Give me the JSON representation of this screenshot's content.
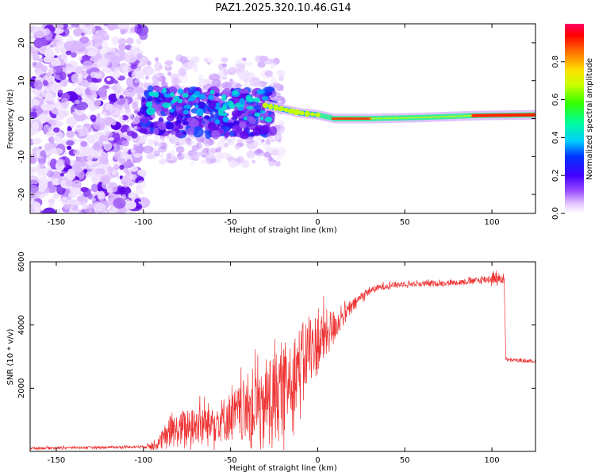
{
  "title": "PAZ1.2025.320.10.46.G14",
  "colors": {
    "snr_line": "#ee3333",
    "grid_tick": "#000000",
    "background": "#ffffff"
  },
  "chart_data": [
    {
      "type": "heatmap",
      "xlabel": "Height of straight line (km)",
      "ylabel": "Frequency (Hz)",
      "xlim": [
        -165,
        125
      ],
      "ylim": [
        -25,
        25
      ],
      "x_ticks": [
        "-150",
        "-100",
        "-50",
        "0",
        "50",
        "100"
      ],
      "x_tick_values": [
        -150,
        -100,
        -50,
        0,
        50,
        100
      ],
      "y_ticks": [
        "-20",
        "-10",
        "0",
        "10",
        "20"
      ],
      "y_tick_values": [
        -20,
        -10,
        0,
        10,
        20
      ],
      "colorbar": {
        "label": "Normalized spectral amplitude",
        "range": [
          0,
          1
        ],
        "ticks": [
          "0.0",
          "0.2",
          "0.4",
          "0.6",
          "0.8"
        ],
        "tick_values": [
          0,
          0.2,
          0.4,
          0.6,
          0.8
        ]
      },
      "ridge": {
        "description_points": [
          {
            "x": -100,
            "f": 4
          },
          {
            "x": -70,
            "f": 3
          },
          {
            "x": -40,
            "f": 3
          },
          {
            "x": -30,
            "f": 3.5
          },
          {
            "x": -20,
            "f": 2.5
          },
          {
            "x": -10,
            "f": 1.5
          },
          {
            "x": 0,
            "f": 1
          },
          {
            "x": 10,
            "f": 0
          },
          {
            "x": 30,
            "f": 0
          },
          {
            "x": 60,
            "f": 0.3
          },
          {
            "x": 90,
            "f": 0.8
          },
          {
            "x": 125,
            "f": 1
          }
        ]
      }
    },
    {
      "type": "line",
      "xlabel": "Height of straight line (km)",
      "ylabel": "SNR (10 * v/v)",
      "xlim": [
        -165,
        125
      ],
      "ylim": [
        0,
        6000
      ],
      "x_ticks": [
        "-150",
        "-100",
        "-50",
        "0",
        "50",
        "100"
      ],
      "x_tick_values": [
        -150,
        -100,
        -50,
        0,
        50,
        100
      ],
      "y_ticks": [
        "2000",
        "4000",
        "6000"
      ],
      "y_tick_values": [
        2000,
        4000,
        6000
      ],
      "series": [
        {
          "name": "SNR",
          "x": [
            -165,
            -140,
            -120,
            -100,
            -92,
            -85,
            -70,
            -55,
            -45,
            -35,
            -25,
            -20,
            -15,
            -10,
            -5,
            0,
            5,
            10,
            15,
            20,
            25,
            30,
            40,
            50,
            60,
            70,
            80,
            90,
            98,
            100,
            107,
            108,
            115,
            125
          ],
          "values": [
            100,
            120,
            130,
            150,
            200,
            600,
            800,
            1000,
            1200,
            1500,
            1700,
            1900,
            2400,
            2800,
            3200,
            3400,
            3700,
            4000,
            4300,
            4600,
            4900,
            5100,
            5250,
            5300,
            5300,
            5320,
            5350,
            5400,
            5450,
            5500,
            5450,
            2900,
            2880,
            2850
          ],
          "noise_amplitude": [
            40,
            40,
            40,
            40,
            200,
            500,
            600,
            700,
            900,
            1300,
            1500,
            1500,
            1300,
            1200,
            1100,
            1000,
            800,
            500,
            300,
            200,
            150,
            120,
            100,
            90,
            90,
            90,
            90,
            100,
            150,
            200,
            150,
            50,
            50,
            50
          ]
        }
      ]
    }
  ]
}
